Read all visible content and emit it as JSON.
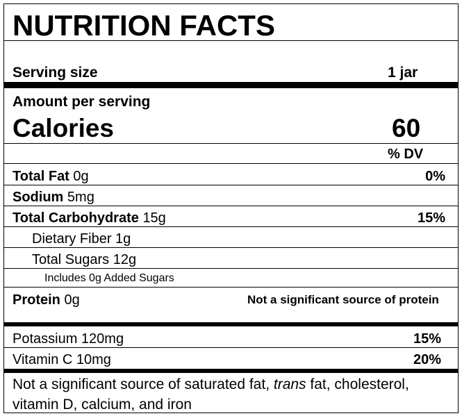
{
  "title": "NUTRITION FACTS",
  "serving": {
    "label": "Serving size",
    "value": "1 jar"
  },
  "amount_label": "Amount per serving",
  "calories": {
    "label": "Calories",
    "value": "60"
  },
  "dv_header": "% DV",
  "rows": [
    {
      "name": "Total Fat",
      "amount": "0g",
      "dv": "0%"
    },
    {
      "name": "Sodium",
      "amount": "5mg"
    },
    {
      "name": "Total Carbohydrate",
      "amount": "15g",
      "dv": "15%"
    }
  ],
  "sub_rows": [
    "Dietary Fiber 1g",
    "Total Sugars 12g"
  ],
  "added_sugars": "Includes 0g Added Sugars",
  "protein": {
    "name": "Protein",
    "amount": "0g",
    "note": "Not a significant source of protein"
  },
  "vitamins": [
    {
      "name": "Potassium 120mg",
      "dv": "15%"
    },
    {
      "name": "Vitamin C 10mg",
      "dv": "20%"
    }
  ],
  "footnote": [
    "Not a significant source of saturated fat, ",
    "trans",
    " fat, cholesterol,  vitamin D, calcium, and iron"
  ]
}
